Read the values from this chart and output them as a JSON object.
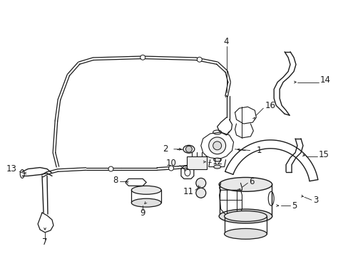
{
  "bg_color": "#ffffff",
  "line_color": "#1a1a1a",
  "fig_width": 4.89,
  "fig_height": 3.6,
  "dpi": 100,
  "font_size": 8.5,
  "lw_tube": 1.0,
  "lw_part": 0.8,
  "lw_leader": 0.6
}
